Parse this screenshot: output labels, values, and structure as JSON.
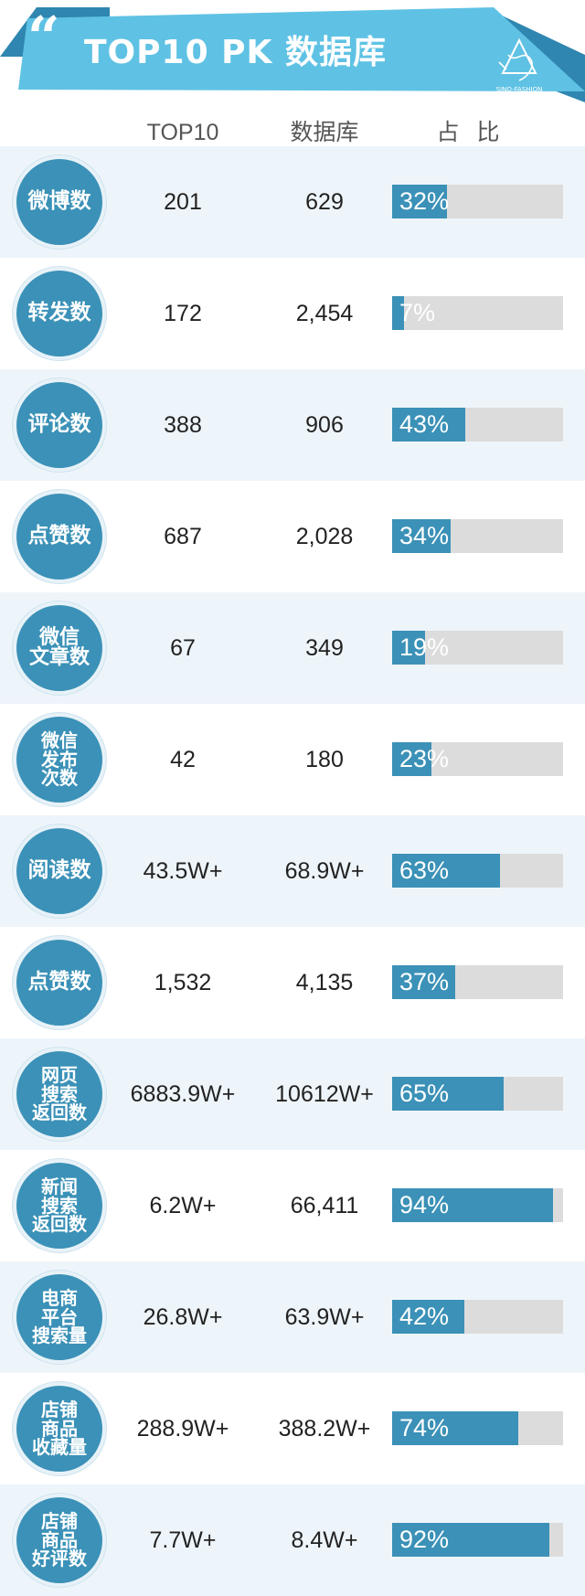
{
  "header": {
    "quote_mark": "“",
    "title": "TOP10 PK 数据库",
    "logo_text": "SINO-FASHION"
  },
  "columns": {
    "top10": "TOP10",
    "database": "数据库",
    "ratio": "占 比"
  },
  "colors": {
    "accent": "#3b91b7",
    "banner": "#5fc2e4",
    "banner_dark": "#2f86b0",
    "track": "#dcdcdc",
    "row_shade": "#eef5fa"
  },
  "chart_data": {
    "type": "table",
    "columns": [
      "TOP10",
      "数据库",
      "占 比"
    ],
    "rows": [
      {
        "label": "微博数",
        "top10": "201",
        "database": "629",
        "ratio": 0.32,
        "ratio_label": "32%"
      },
      {
        "label": "转发数",
        "top10": "172",
        "database": "2,454",
        "ratio": 0.07,
        "ratio_label": "7%"
      },
      {
        "label": "评论数",
        "top10": "388",
        "database": "906",
        "ratio": 0.43,
        "ratio_label": "43%"
      },
      {
        "label": "点赞数",
        "top10": "687",
        "database": "2,028",
        "ratio": 0.34,
        "ratio_label": "34%"
      },
      {
        "label": "微信\n文章数",
        "top10": "67",
        "database": "349",
        "ratio": 0.19,
        "ratio_label": "19%"
      },
      {
        "label": "微信\n发布\n次数",
        "top10": "42",
        "database": "180",
        "ratio": 0.23,
        "ratio_label": "23%"
      },
      {
        "label": "阅读数",
        "top10": "43.5W+",
        "database": "68.9W+",
        "ratio": 0.63,
        "ratio_label": "63%"
      },
      {
        "label": "点赞数",
        "top10": "1,532",
        "database": "4,135",
        "ratio": 0.37,
        "ratio_label": "37%"
      },
      {
        "label": "网页\n搜索\n返回数",
        "top10": "6883.9W+",
        "database": "10612W+",
        "ratio": 0.65,
        "ratio_label": "65%"
      },
      {
        "label": "新闻\n搜索\n返回数",
        "top10": "6.2W+",
        "database": "66,411",
        "ratio": 0.94,
        "ratio_label": "94%"
      },
      {
        "label": "电商\n平台\n搜索量",
        "top10": "26.8W+",
        "database": "63.9W+",
        "ratio": 0.42,
        "ratio_label": "42%"
      },
      {
        "label": "店铺\n商品\n收藏量",
        "top10": "288.9W+",
        "database": "388.2W+",
        "ratio": 0.74,
        "ratio_label": "74%"
      },
      {
        "label": "店铺\n商品\n好评数",
        "top10": "7.7W+",
        "database": "8.4W+",
        "ratio": 0.92,
        "ratio_label": "92%"
      }
    ]
  }
}
